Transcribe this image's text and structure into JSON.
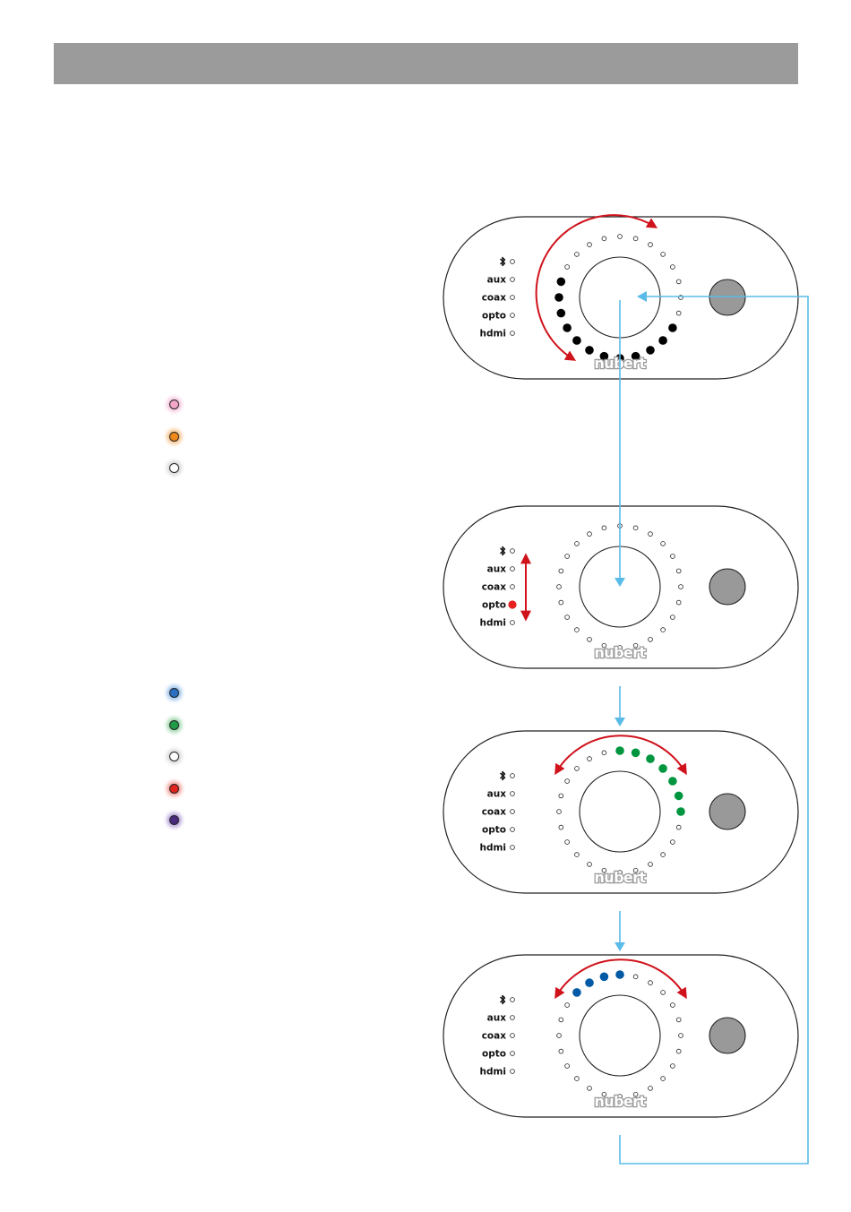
{
  "source_labels": [
    "aux",
    "coax",
    "opto",
    "hdmi"
  ],
  "bluetooth_icon": "bluetooth-icon",
  "brand_logo": "nubert",
  "colors": {
    "header": "#9b9b9b",
    "flow_arrow": "#5bbbe8",
    "motion_arrow": "#d0121b",
    "led_black": "#000000",
    "led_green": "#00963f",
    "led_blue": "#005aa5",
    "led_red": "#e4211f",
    "button_gray": "#999999"
  },
  "legend_group_1": [
    {
      "name": "pink",
      "color": "#f2a6c8",
      "glow": "#f7c6de"
    },
    {
      "name": "orange",
      "color": "#ef8a1a",
      "glow": "#f8c28a"
    },
    {
      "name": "white",
      "color": "#ffffff",
      "glow": "#d9d9d9"
    }
  ],
  "legend_group_2": [
    {
      "name": "blue",
      "color": "#2a6fc1",
      "glow": "#9ec3ec"
    },
    {
      "name": "green",
      "color": "#1f9a46",
      "glow": "#9fd6ad"
    },
    {
      "name": "white",
      "color": "#ffffff",
      "glow": "#d9d9d9"
    },
    {
      "name": "red",
      "color": "#e0231d",
      "glow": "#f3a29b"
    },
    {
      "name": "purple",
      "color": "#4a2a7d",
      "glow": "#b9a6dc"
    }
  ],
  "panels": [
    {
      "name": "panel-1",
      "ring_state": "volume-sweep",
      "active_ring_leds": [
        8,
        9,
        10,
        11,
        12,
        13,
        14,
        15,
        16,
        17,
        18,
        19
      ],
      "active_color": "black",
      "active_source": "",
      "arrow": "rotate-both"
    },
    {
      "name": "panel-2",
      "ring_state": "idle",
      "active_ring_leds": [],
      "active_color": "",
      "active_source": "opto",
      "arrow": "source-select"
    },
    {
      "name": "panel-3",
      "ring_state": "green-arc",
      "active_ring_leds": [
        0,
        1,
        2,
        3,
        4,
        5,
        6
      ],
      "active_color": "green",
      "active_source": "",
      "arrow": "rotate-both"
    },
    {
      "name": "panel-4",
      "ring_state": "blue-arc",
      "active_ring_leds": [
        0,
        22,
        23,
        21
      ],
      "active_color": "blue",
      "active_source": "",
      "arrow": "rotate-both"
    }
  ]
}
